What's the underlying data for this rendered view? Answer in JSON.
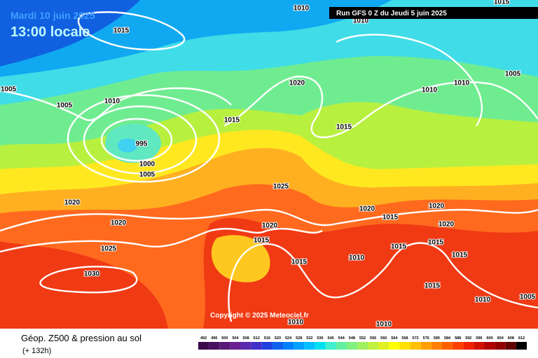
{
  "header": {
    "date": "Mardi 10 juin 2025",
    "time": "13:00 locale",
    "run": "Run GFS 0 Z du Jeudi 5 juin 2025"
  },
  "isobar_labels": [
    1010,
    1015,
    1010,
    1015,
    1005,
    1005,
    1010,
    1020,
    1010,
    1010,
    1005,
    1015,
    1015,
    995,
    1000,
    1005,
    1025,
    1020,
    1020,
    1020,
    1015,
    1020,
    1020,
    1020,
    1015,
    1015,
    1015,
    1025,
    1010,
    1015,
    1015,
    1030,
    1015,
    1010,
    1005,
    1010,
    1010
  ],
  "copyright": "Copyright © 2025 Meteociel.fr",
  "footer": {
    "title": "Géop. Z500 & pression au sol",
    "lead": "(+ 132h)"
  },
  "scale": {
    "labels": [
      492,
      496,
      500,
      504,
      508,
      512,
      516,
      520,
      524,
      528,
      532,
      536,
      540,
      544,
      548,
      552,
      556,
      560,
      564,
      568,
      572,
      576,
      580,
      584,
      588,
      592,
      596,
      600,
      604,
      608,
      612
    ],
    "colors": [
      "#3c0a4c",
      "#4a1060",
      "#5a1a78",
      "#6a2090",
      "#5a2ab0",
      "#4030c8",
      "#2040e0",
      "#1060f0",
      "#0080ff",
      "#00a0ff",
      "#00c0ff",
      "#00e0f0",
      "#40f0d0",
      "#60f0a0",
      "#80f080",
      "#a0f060",
      "#c0f040",
      "#e0f020",
      "#ffff00",
      "#ffe000",
      "#ffc000",
      "#ffa000",
      "#ff8000",
      "#ff6000",
      "#ff4000",
      "#f02000",
      "#d01000",
      "#b00000",
      "#900000",
      "#600000",
      "#000000"
    ]
  }
}
